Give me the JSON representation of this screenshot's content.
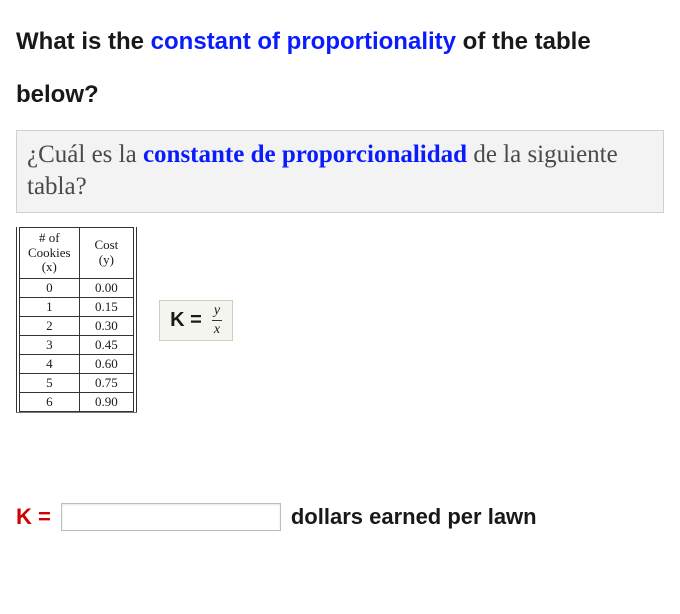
{
  "question_en": {
    "part1": "What is the ",
    "highlight": "constant of proportionality",
    "part2": " of the table below?"
  },
  "question_es": {
    "part1": "¿Cuál es la ",
    "highlight": "constante de proporcionalidad",
    "part2": " de la siguiente tabla?"
  },
  "table": {
    "header_x_line1": "# of",
    "header_x_line2": "Cookies",
    "header_x_line3": "(x)",
    "header_y_line1": "Cost",
    "header_y_line2": "(y)",
    "rows": [
      {
        "x": "0",
        "y": "0.00"
      },
      {
        "x": "1",
        "y": "0.15"
      },
      {
        "x": "2",
        "y": "0.30"
      },
      {
        "x": "3",
        "y": "0.45"
      },
      {
        "x": "4",
        "y": "0.60"
      },
      {
        "x": "5",
        "y": "0.75"
      },
      {
        "x": "6",
        "y": "0.90"
      }
    ]
  },
  "formula": {
    "k_eq": "K =",
    "numerator": "y",
    "denominator": "x"
  },
  "answer": {
    "k_eq": "K =",
    "input_value": "",
    "unit": "dollars earned per lawn"
  },
  "colors": {
    "highlight_blue": "#0a1cff",
    "k_red": "#d20000",
    "box_bg": "#f3f3f3",
    "box_border": "#d0d0d0",
    "formula_bg": "#f5f5ef",
    "formula_border": "#cfccc0",
    "text": "#18191a"
  }
}
